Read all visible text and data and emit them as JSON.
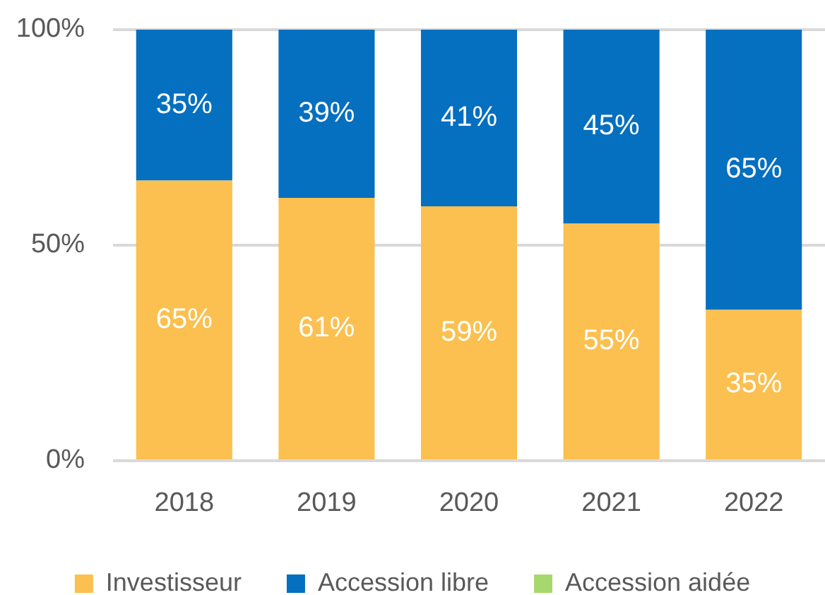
{
  "chart_data": {
    "type": "bar",
    "stacked": true,
    "categories": [
      "2018",
      "2019",
      "2020",
      "2021",
      "2022"
    ],
    "series": [
      {
        "name": "Investisseur",
        "color": "#fbc04f",
        "values": [
          65,
          61,
          59,
          55,
          35
        ],
        "value_labels": [
          "65%",
          "61%",
          "59%",
          "55%",
          "35%"
        ]
      },
      {
        "name": "Accession libre",
        "color": "#056fc0",
        "values": [
          35,
          39,
          41,
          45,
          65
        ],
        "value_labels": [
          "35%",
          "39%",
          "41%",
          "45%",
          "65%"
        ]
      },
      {
        "name": "Accession aidée",
        "color": "#a7d86d",
        "values": [
          0,
          0,
          0,
          0,
          0
        ]
      }
    ],
    "ylim": [
      0,
      100
    ],
    "yticks": [
      {
        "value": 0,
        "label": "0%"
      },
      {
        "value": 50,
        "label": "50%"
      },
      {
        "value": 100,
        "label": "100%"
      }
    ],
    "grid": "y",
    "legend": "bottom"
  }
}
